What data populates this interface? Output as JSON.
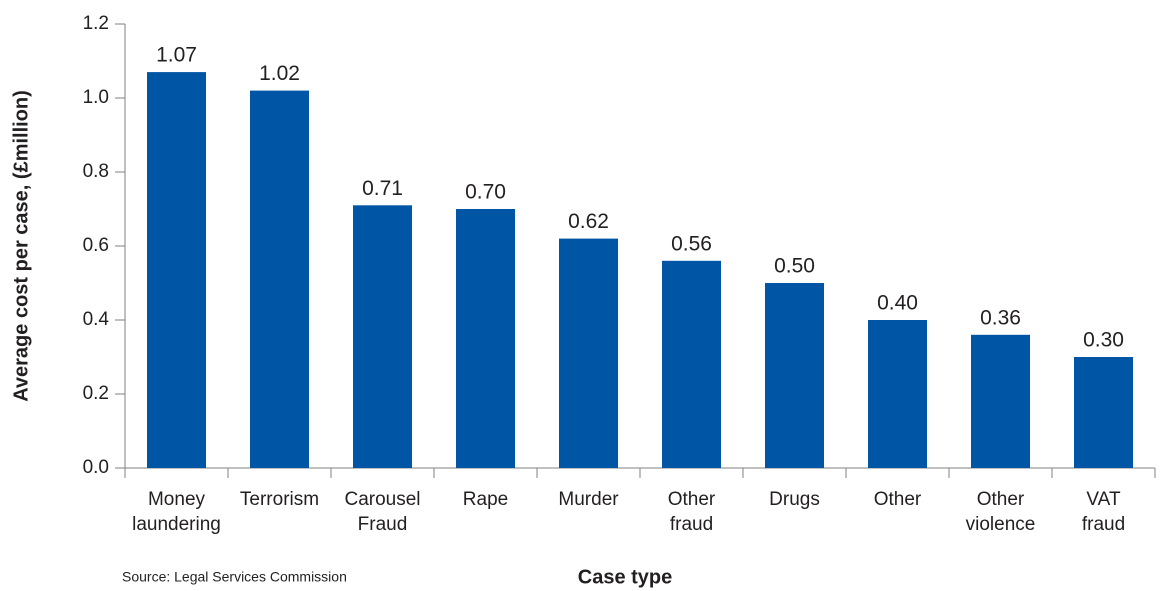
{
  "chart_data": {
    "type": "bar",
    "y_label": "Average cost per case, (£million)",
    "x_label": "Case type",
    "source": "Source: Legal Services Commission",
    "categories": [
      "Money laundering",
      "Terrorism",
      "Carousel Fraud",
      "Rape",
      "Murder",
      "Other fraud",
      "Drugs",
      "Other",
      "Other violence",
      "VAT fraud"
    ],
    "values": [
      1.07,
      1.02,
      0.71,
      0.7,
      0.62,
      0.56,
      0.5,
      0.4,
      0.36,
      0.3
    ],
    "value_labels": [
      "1.07",
      "1.02",
      "0.71",
      "0.70",
      "0.62",
      "0.56",
      "0.50",
      "0.40",
      "0.36",
      "0.30"
    ],
    "color": "#0055a5",
    "ylim": [
      0,
      1.2
    ],
    "yticks": [
      {
        "value": 0,
        "label": "0.0"
      },
      0.2,
      0.4,
      0.6,
      0.8,
      {
        "value": 1,
        "label": "1.0"
      },
      1.2
    ],
    "grid": false
  }
}
